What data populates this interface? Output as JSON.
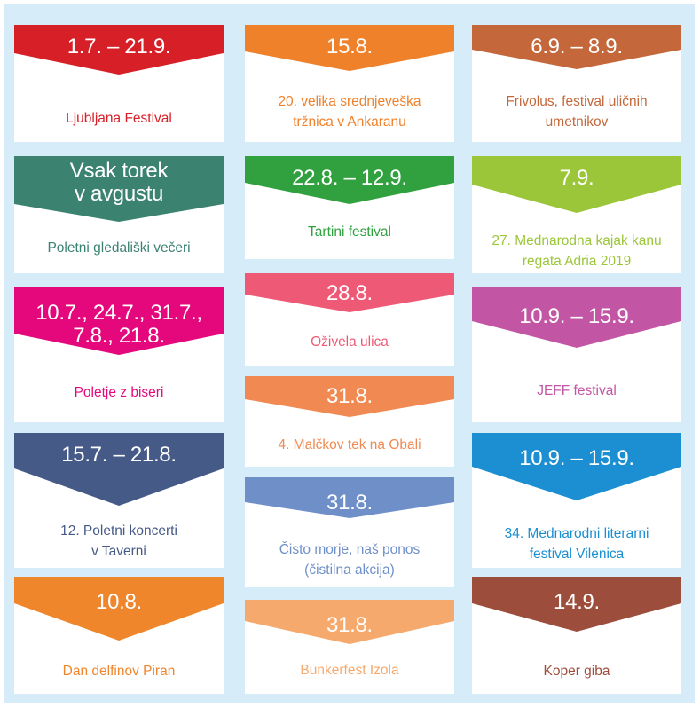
{
  "events": [
    {
      "date": "1.7. – 21.9.",
      "title": "Ljubljana Festival",
      "color": "#d71f27"
    },
    {
      "date": "15.8.",
      "title": "20. velika srednjeveška\ntržnica v Ankaranu",
      "color": "#f0812b"
    },
    {
      "date": "6.9. – 8.9.",
      "title": "Frivolus, festival uličnih\numetnikov",
      "color": "#c4683b"
    },
    {
      "date": "Vsak torek\nv avgustu",
      "title": "Poletni gledališki večeri",
      "color": "#3b8271"
    },
    {
      "date": "22.8. – 12.9.",
      "title": "Tartini festival",
      "color": "#30a13e"
    },
    {
      "date": "7.9.",
      "title": "27. Mednarodna kajak kanu\nregata Adria 2019",
      "color": "#9cc63a"
    },
    {
      "date": "10.7., 24.7., 31.7.,\n7.8., 21.8.",
      "title": "Poletje z biseri",
      "color": "#e5087d"
    },
    {
      "date": "28.8.",
      "title": "Oživela ulica",
      "color": "#ee5a76"
    },
    {
      "date": "10.9. – 15.9.",
      "title": "JEFF festival",
      "color": "#c256a4"
    },
    {
      "date": "31.8.",
      "title": "4. Malčkov tek na Obali",
      "color": "#f08a52"
    },
    {
      "date": "15.7. – 21.8.",
      "title": "12. Poletni koncerti\nv Taverni",
      "color": "#455a86"
    },
    {
      "date": "10.9. – 15.9.",
      "title": "34. Mednarodni literarni\nfestival Vilenica",
      "color": "#1b8fd2"
    },
    {
      "date": "31.8.",
      "title": "Čisto morje, naš ponos\n(čistilna akcija)",
      "color": "#6f8fc9"
    },
    {
      "date": "10.8.",
      "title": "Dan delfinov Piran",
      "color": "#f0862b"
    },
    {
      "date": "31.8.",
      "title": "Bunkerfest Izola",
      "color": "#f6a96d"
    },
    {
      "date": "14.9.",
      "title": "Koper giba",
      "color": "#9c4d3b"
    }
  ]
}
